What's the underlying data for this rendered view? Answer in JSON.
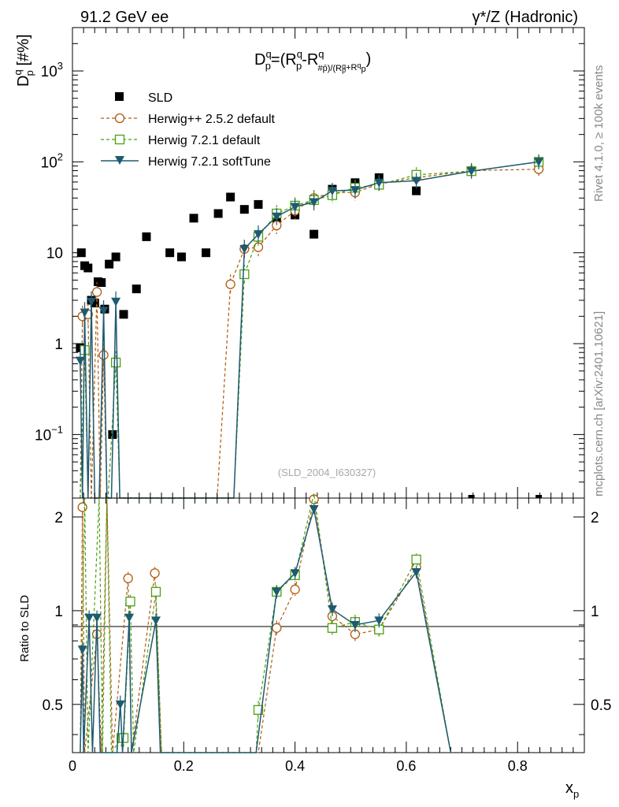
{
  "header": {
    "left": "91.2 GeV ee",
    "right": "γ*/Z (Hadronic)"
  },
  "side_text": {
    "top": "Rivet 4.1.0, ≥ 100k events",
    "bottom": "mcplots.cern.ch [arXiv:2401.10621]"
  },
  "watermark": "(SLD_2004_I630327)",
  "chart_data": [
    {
      "type": "scatter",
      "yscale": "log",
      "title": "D_p^q=(R_p^q-R_#p̄^q)/(R_p^q+R_p^q)",
      "title_parts": {
        "main": "D",
        "sup": "q",
        "sub": "p",
        "eq": "=(R",
        "minus": "-R",
        "close": ")",
        "frac_sub": "#p̄)/(R",
        "plus": "+R",
        "p": "p"
      },
      "ylabel": "D_p^q [#%]",
      "ylabel_parts": {
        "main": "D",
        "sup": "q",
        "sub": "p",
        "unit": " [#%]"
      },
      "xlim": [
        0,
        0.92
      ],
      "ylim": [
        0.02,
        3000
      ],
      "yticks": [
        {
          "value": 0.1,
          "base": "10",
          "exp": "−1"
        },
        {
          "value": 1,
          "label": "1"
        },
        {
          "value": 10,
          "label": "10"
        },
        {
          "value": 100,
          "base": "10",
          "exp": "2"
        },
        {
          "value": 1000,
          "base": "10",
          "exp": "3"
        }
      ],
      "legend": [
        "SLD",
        "Herwig++ 2.5.2 default",
        "Herwig 7.2.1 default",
        "Herwig 7.2.1 softTune"
      ],
      "series": [
        {
          "name": "SLD",
          "color": "#000000",
          "marker": "square-filled",
          "points": [
            [
              0.014,
              0.9
            ],
            [
              0.016,
              10
            ],
            [
              0.022,
              7.2
            ],
            [
              0.028,
              6.8
            ],
            [
              0.034,
              3.0
            ],
            [
              0.04,
              2.8
            ],
            [
              0.046,
              4.8
            ],
            [
              0.052,
              4.7
            ],
            [
              0.058,
              2.4
            ],
            [
              0.066,
              7.5
            ],
            [
              0.072,
              0.1
            ],
            [
              0.078,
              9.0
            ],
            [
              0.092,
              2.1
            ],
            [
              0.115,
              4.0
            ],
            [
              0.133,
              15
            ],
            [
              0.175,
              10
            ],
            [
              0.196,
              9
            ],
            [
              0.218,
              24
            ],
            [
              0.24,
              10
            ],
            [
              0.262,
              27
            ],
            [
              0.284,
              41
            ],
            [
              0.309,
              30
            ],
            [
              0.334,
              34
            ],
            [
              0.367,
              24
            ],
            [
              0.4,
              26
            ],
            [
              0.434,
              16
            ],
            [
              0.467,
              50
            ],
            [
              0.508,
              59
            ],
            [
              0.551,
              67
            ],
            [
              0.618,
              48
            ],
            [
              0.717,
              0.02
            ],
            [
              0.838,
              0.02
            ]
          ]
        },
        {
          "name": "Herwig++ 2.5.2 default",
          "color": "#b35a0e",
          "dash": "4,3",
          "marker": "circle-open",
          "points": [
            [
              0.014,
              0.02
            ],
            [
              0.018,
              2.0
            ],
            [
              0.028,
              2.1
            ],
            [
              0.034,
              0.02
            ],
            [
              0.044,
              3.7
            ],
            [
              0.05,
              0.02
            ],
            [
              0.056,
              0.75
            ],
            [
              0.062,
              0.02
            ],
            [
              0.072,
              0.02
            ],
            [
              0.08,
              0.02
            ],
            [
              0.1,
              0.02
            ],
            [
              0.15,
              0.02
            ],
            [
              0.2,
              0.02
            ],
            [
              0.26,
              0.02
            ],
            [
              0.284,
              4.5
            ],
            [
              0.309,
              11
            ],
            [
              0.334,
              11.5
            ],
            [
              0.367,
              20
            ],
            [
              0.4,
              29
            ],
            [
              0.434,
              40
            ],
            [
              0.467,
              46
            ],
            [
              0.508,
              46
            ],
            [
              0.551,
              57
            ],
            [
              0.618,
              67
            ],
            [
              0.717,
              80
            ],
            [
              0.838,
              83
            ]
          ]
        },
        {
          "name": "Herwig 7.2.1 default",
          "color": "#4aa012",
          "dash": "4,3",
          "marker": "square-open",
          "points": [
            [
              0.014,
              0.02
            ],
            [
              0.022,
              0.85
            ],
            [
              0.028,
              0.02
            ],
            [
              0.034,
              0.02
            ],
            [
              0.04,
              0.02
            ],
            [
              0.048,
              0.02
            ],
            [
              0.056,
              0.02
            ],
            [
              0.064,
              0.02
            ],
            [
              0.078,
              0.62
            ],
            [
              0.085,
              0.02
            ],
            [
              0.1,
              0.02
            ],
            [
              0.15,
              0.02
            ],
            [
              0.2,
              0.02
            ],
            [
              0.26,
              0.02
            ],
            [
              0.29,
              0.02
            ],
            [
              0.309,
              5.8
            ],
            [
              0.334,
              15
            ],
            [
              0.367,
              27
            ],
            [
              0.4,
              33
            ],
            [
              0.434,
              38
            ],
            [
              0.467,
              43
            ],
            [
              0.508,
              52
            ],
            [
              0.551,
              56
            ],
            [
              0.618,
              72
            ],
            [
              0.717,
              79
            ],
            [
              0.838,
              100
            ]
          ]
        },
        {
          "name": "Herwig 7.2.1 softTune",
          "color": "#1e5a70",
          "marker": "triangle-down",
          "points": [
            [
              0.014,
              0.65
            ],
            [
              0.018,
              0.02
            ],
            [
              0.022,
              2.2
            ],
            [
              0.028,
              0.02
            ],
            [
              0.034,
              2.9
            ],
            [
              0.04,
              0.02
            ],
            [
              0.048,
              0.02
            ],
            [
              0.056,
              2.3
            ],
            [
              0.062,
              0.02
            ],
            [
              0.07,
              0.02
            ],
            [
              0.078,
              2.9
            ],
            [
              0.085,
              0.02
            ],
            [
              0.1,
              0.02
            ],
            [
              0.15,
              0.02
            ],
            [
              0.2,
              0.02
            ],
            [
              0.26,
              0.02
            ],
            [
              0.29,
              0.02
            ],
            [
              0.309,
              11
            ],
            [
              0.334,
              16
            ],
            [
              0.367,
              25
            ],
            [
              0.4,
              32
            ],
            [
              0.434,
              36
            ],
            [
              0.467,
              48
            ],
            [
              0.508,
              49
            ],
            [
              0.551,
              59
            ],
            [
              0.618,
              62
            ],
            [
              0.717,
              79
            ],
            [
              0.838,
              100
            ]
          ]
        }
      ]
    },
    {
      "type": "line",
      "ylabel": "Ratio to SLD",
      "xlabel": "x_p",
      "xlabel_parts": {
        "main": "x",
        "sub": "p"
      },
      "xlim": [
        0,
        0.92
      ],
      "ylim": [
        0.35,
        2.3
      ],
      "xticks": [
        {
          "value": 0,
          "label": "0"
        },
        {
          "value": 0.2,
          "label": "0.2"
        },
        {
          "value": 0.4,
          "label": "0.4"
        },
        {
          "value": 0.6,
          "label": "0.6"
        },
        {
          "value": 0.8,
          "label": "0.8"
        }
      ],
      "yticks": [
        {
          "value": 0.5,
          "label": "0.5"
        },
        {
          "value": 1,
          "label": "1"
        },
        {
          "value": 2,
          "label": "2"
        }
      ],
      "reference": 1,
      "series": [
        {
          "name": "Herwig++ 2.5.2 default",
          "color": "#b35a0e",
          "dash": "4,3",
          "marker": "circle-open",
          "points": [
            [
              0.014,
              0.35
            ],
            [
              0.018,
              2.15
            ],
            [
              0.022,
              0.35
            ],
            [
              0.044,
              0.84
            ],
            [
              0.052,
              0.35
            ],
            [
              0.062,
              2.3
            ],
            [
              0.072,
              0.35
            ],
            [
              0.1,
              1.27
            ],
            [
              0.106,
              0.35
            ],
            [
              0.148,
              1.32
            ],
            [
              0.16,
              0.35
            ],
            [
              0.33,
              0.35
            ],
            [
              0.334,
              0.35
            ],
            [
              0.367,
              0.88
            ],
            [
              0.4,
              1.17
            ],
            [
              0.434,
              2.28
            ],
            [
              0.467,
              0.96
            ],
            [
              0.508,
              0.84
            ],
            [
              0.551,
              0.87
            ],
            [
              0.618,
              1.38
            ],
            [
              0.68,
              0.35
            ]
          ]
        },
        {
          "name": "Herwig 7.2.1 default",
          "color": "#4aa012",
          "dash": "4,3",
          "marker": "square-open",
          "points": [
            [
              0.014,
              0.35
            ],
            [
              0.022,
              2.3
            ],
            [
              0.028,
              0.35
            ],
            [
              0.048,
              2.3
            ],
            [
              0.054,
              0.35
            ],
            [
              0.062,
              2.3
            ],
            [
              0.07,
              0.35
            ],
            [
              0.088,
              0.39
            ],
            [
              0.092,
              0.39
            ],
            [
              0.104,
              1.07
            ],
            [
              0.11,
              0.35
            ],
            [
              0.15,
              1.15
            ],
            [
              0.16,
              0.35
            ],
            [
              0.33,
              0.35
            ],
            [
              0.334,
              0.48
            ],
            [
              0.367,
              1.15
            ],
            [
              0.4,
              1.3
            ],
            [
              0.434,
              2.38
            ],
            [
              0.467,
              0.88
            ],
            [
              0.508,
              0.92
            ],
            [
              0.551,
              0.87
            ],
            [
              0.618,
              1.46
            ],
            [
              0.68,
              0.35
            ]
          ]
        },
        {
          "name": "Herwig 7.2.1 softTune",
          "color": "#1e5a70",
          "marker": "triangle-down",
          "points": [
            [
              0.014,
              0.35
            ],
            [
              0.018,
              0.75
            ],
            [
              0.02,
              0.35
            ],
            [
              0.03,
              0.95
            ],
            [
              0.036,
              0.35
            ],
            [
              0.044,
              0.95
            ],
            [
              0.05,
              0.35
            ],
            [
              0.08,
              0.35
            ],
            [
              0.086,
              0.5
            ],
            [
              0.09,
              0.35
            ],
            [
              0.102,
              0.95
            ],
            [
              0.106,
              0.35
            ],
            [
              0.15,
              0.93
            ],
            [
              0.158,
              0.35
            ],
            [
              0.33,
              0.35
            ],
            [
              0.367,
              1.15
            ],
            [
              0.4,
              1.32
            ],
            [
              0.434,
              2.12
            ],
            [
              0.467,
              1.01
            ],
            [
              0.508,
              0.9
            ],
            [
              0.551,
              0.93
            ],
            [
              0.618,
              1.33
            ],
            [
              0.68,
              0.35
            ]
          ]
        }
      ]
    }
  ]
}
